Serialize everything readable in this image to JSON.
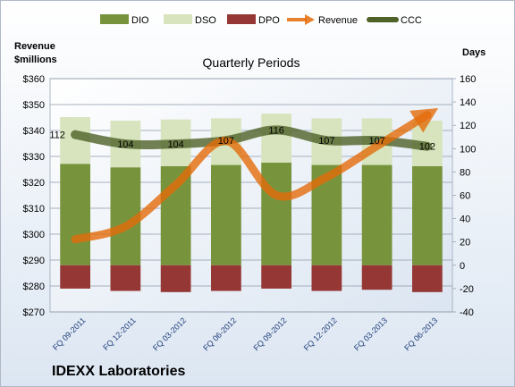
{
  "chart_data": {
    "type": "combo",
    "title": "Quarterly Periods",
    "company": "IDEXX Laboratories",
    "left_axis_label": [
      "Revenue",
      "$millions"
    ],
    "right_axis_label": "Days",
    "left_axis": {
      "min": 270,
      "max": 360,
      "step": 10,
      "format": "$"
    },
    "right_axis": {
      "min": -40,
      "max": 160,
      "step": 20
    },
    "categories": [
      "FQ 09-2011",
      "FQ 12-2011",
      "FQ 03-2012",
      "FQ 06-2012",
      "FQ 09-2012",
      "FQ 12-2012",
      "FQ 03-2013",
      "FQ 06-2013"
    ],
    "legend_position": "top",
    "series": [
      {
        "name": "DIO",
        "type": "stacked-bar",
        "axis": "right",
        "color": "#77933c",
        "values": [
          87,
          84,
          85,
          86,
          88,
          86,
          86,
          85
        ]
      },
      {
        "name": "DSO",
        "type": "stacked-bar",
        "axis": "right",
        "color": "#d7e4bd",
        "values": [
          40,
          40,
          40,
          40,
          42,
          40,
          40,
          39
        ]
      },
      {
        "name": "DPO",
        "type": "stacked-bar",
        "axis": "right",
        "color": "#953735",
        "values": [
          -20,
          -22,
          -23,
          -22,
          -20,
          -22,
          -21,
          -23
        ]
      },
      {
        "name": "Revenue",
        "type": "line",
        "axis": "left",
        "color": "#e46c0a",
        "values": [
          298,
          303,
          319,
          336,
          315,
          322,
          334,
          346
        ]
      },
      {
        "name": "CCC",
        "type": "line",
        "axis": "right",
        "color": "#4f6228",
        "values": [
          112,
          104,
          104,
          107,
          116,
          107,
          107,
          102
        ],
        "labels": [
          "112",
          "104",
          "104",
          "107",
          "116",
          "107",
          "107",
          "102"
        ]
      }
    ]
  }
}
